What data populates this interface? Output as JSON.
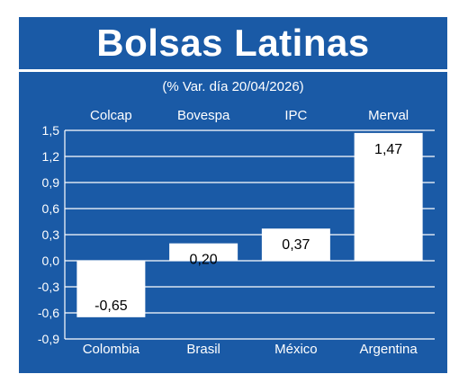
{
  "title": "Bolsas Latinas",
  "subtitle": "(% Var. día 20/04/2026)",
  "colors": {
    "background": "#1a5aa6",
    "bars": "#ffffff",
    "text": "#ffffff",
    "value_text": "#000000"
  },
  "chart_data": {
    "type": "bar",
    "title": "Bolsas Latinas",
    "subtitle": "(% Var. día 20/04/2026)",
    "index_labels": [
      "Colcap",
      "Bovespa",
      "IPC",
      "Merval"
    ],
    "categories": [
      "Colombia",
      "Brasil",
      "México",
      "Argentina"
    ],
    "values": [
      -0.65,
      0.2,
      0.37,
      1.47
    ],
    "value_labels": [
      "-0,65",
      "0,20",
      "0,37",
      "1,47"
    ],
    "ylim": [
      -0.9,
      1.5
    ],
    "yticks": [
      1.5,
      1.2,
      0.9,
      0.6,
      0.3,
      0.0,
      -0.3,
      -0.6,
      -0.9
    ],
    "ytick_labels": [
      "1,5",
      "1,2",
      "0,9",
      "0,6",
      "0,3",
      "0,0",
      "-0,3",
      "-0,6",
      "-0,9"
    ],
    "grid": true,
    "xlabel": "",
    "ylabel": ""
  }
}
